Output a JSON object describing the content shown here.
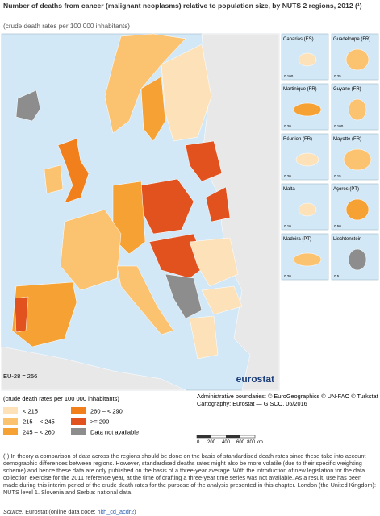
{
  "header": {
    "title": "Number of deaths from cancer (malignant neoplasms) relative to population size, by NUTS 2 regions, 2012 (¹)",
    "subtitle": "(crude death rates per 100 000 inhabitants)"
  },
  "map": {
    "eu_average": "EU-28 = 256",
    "logo": "eurostat",
    "insets": [
      {
        "name": "Canarias (ES)",
        "scale": "0  100"
      },
      {
        "name": "Guadeloupe (FR)",
        "scale": "0  25"
      },
      {
        "name": "Martinique (FR)",
        "scale": "0  20"
      },
      {
        "name": "Guyane (FR)",
        "scale": "0  100"
      },
      {
        "name": "Réunion (FR)",
        "scale": "0  20"
      },
      {
        "name": "Mayotte (FR)",
        "scale": "0  15"
      },
      {
        "name": "Malta",
        "scale": "0  10"
      },
      {
        "name": "Açores (PT)",
        "scale": "0  50"
      },
      {
        "name": "Madeira (PT)",
        "scale": "0  20"
      },
      {
        "name": "Liechtenstein",
        "scale": "0  5"
      }
    ]
  },
  "legend": {
    "title": "(crude death rates per 100 000 inhabitants)",
    "items": [
      {
        "label": "< 215",
        "color": "#fde1b9"
      },
      {
        "label": "215 – < 245",
        "color": "#fbc270"
      },
      {
        "label": "245 – < 260",
        "color": "#f6a133"
      },
      {
        "label": "260 – < 290",
        "color": "#f07f1c"
      },
      {
        "label": ">= 290",
        "color": "#e1521f"
      },
      {
        "label": "Data not available",
        "color": "#8d8d8d"
      }
    ]
  },
  "credits": {
    "boundaries": "Administrative boundaries: © EuroGeographics © UN-FAO © Turkstat",
    "cartography": "Cartography: Eurostat — GISCO, 06/2016",
    "scale_labels": [
      "0",
      "200",
      "400",
      "600",
      "800 km"
    ]
  },
  "footnote": "(¹) In theory a comparison of data across the regions should be done on the basis of standardised death rates since these take into account demographic differences between regions. However, standardised deaths rates might also be more volatile (due to their specific weighting scheme) and hence these data are only published on the basis of a three-year average. With the introduction of new legislation for the data collection exercise for the 2011 reference year, at the time of drafting a three-year time series was not available. As a result, use has been made during this interim period of the crude death rates for the purpose of the analysis presented in this chapter. London (the United Kingdom): NUTS level 1. Slovenia and Serbia: national data.",
  "source": {
    "label": "Source:",
    "text": "Eurostat (online data code: ",
    "code": "hlth_cd_acdr2",
    "close": ")"
  }
}
